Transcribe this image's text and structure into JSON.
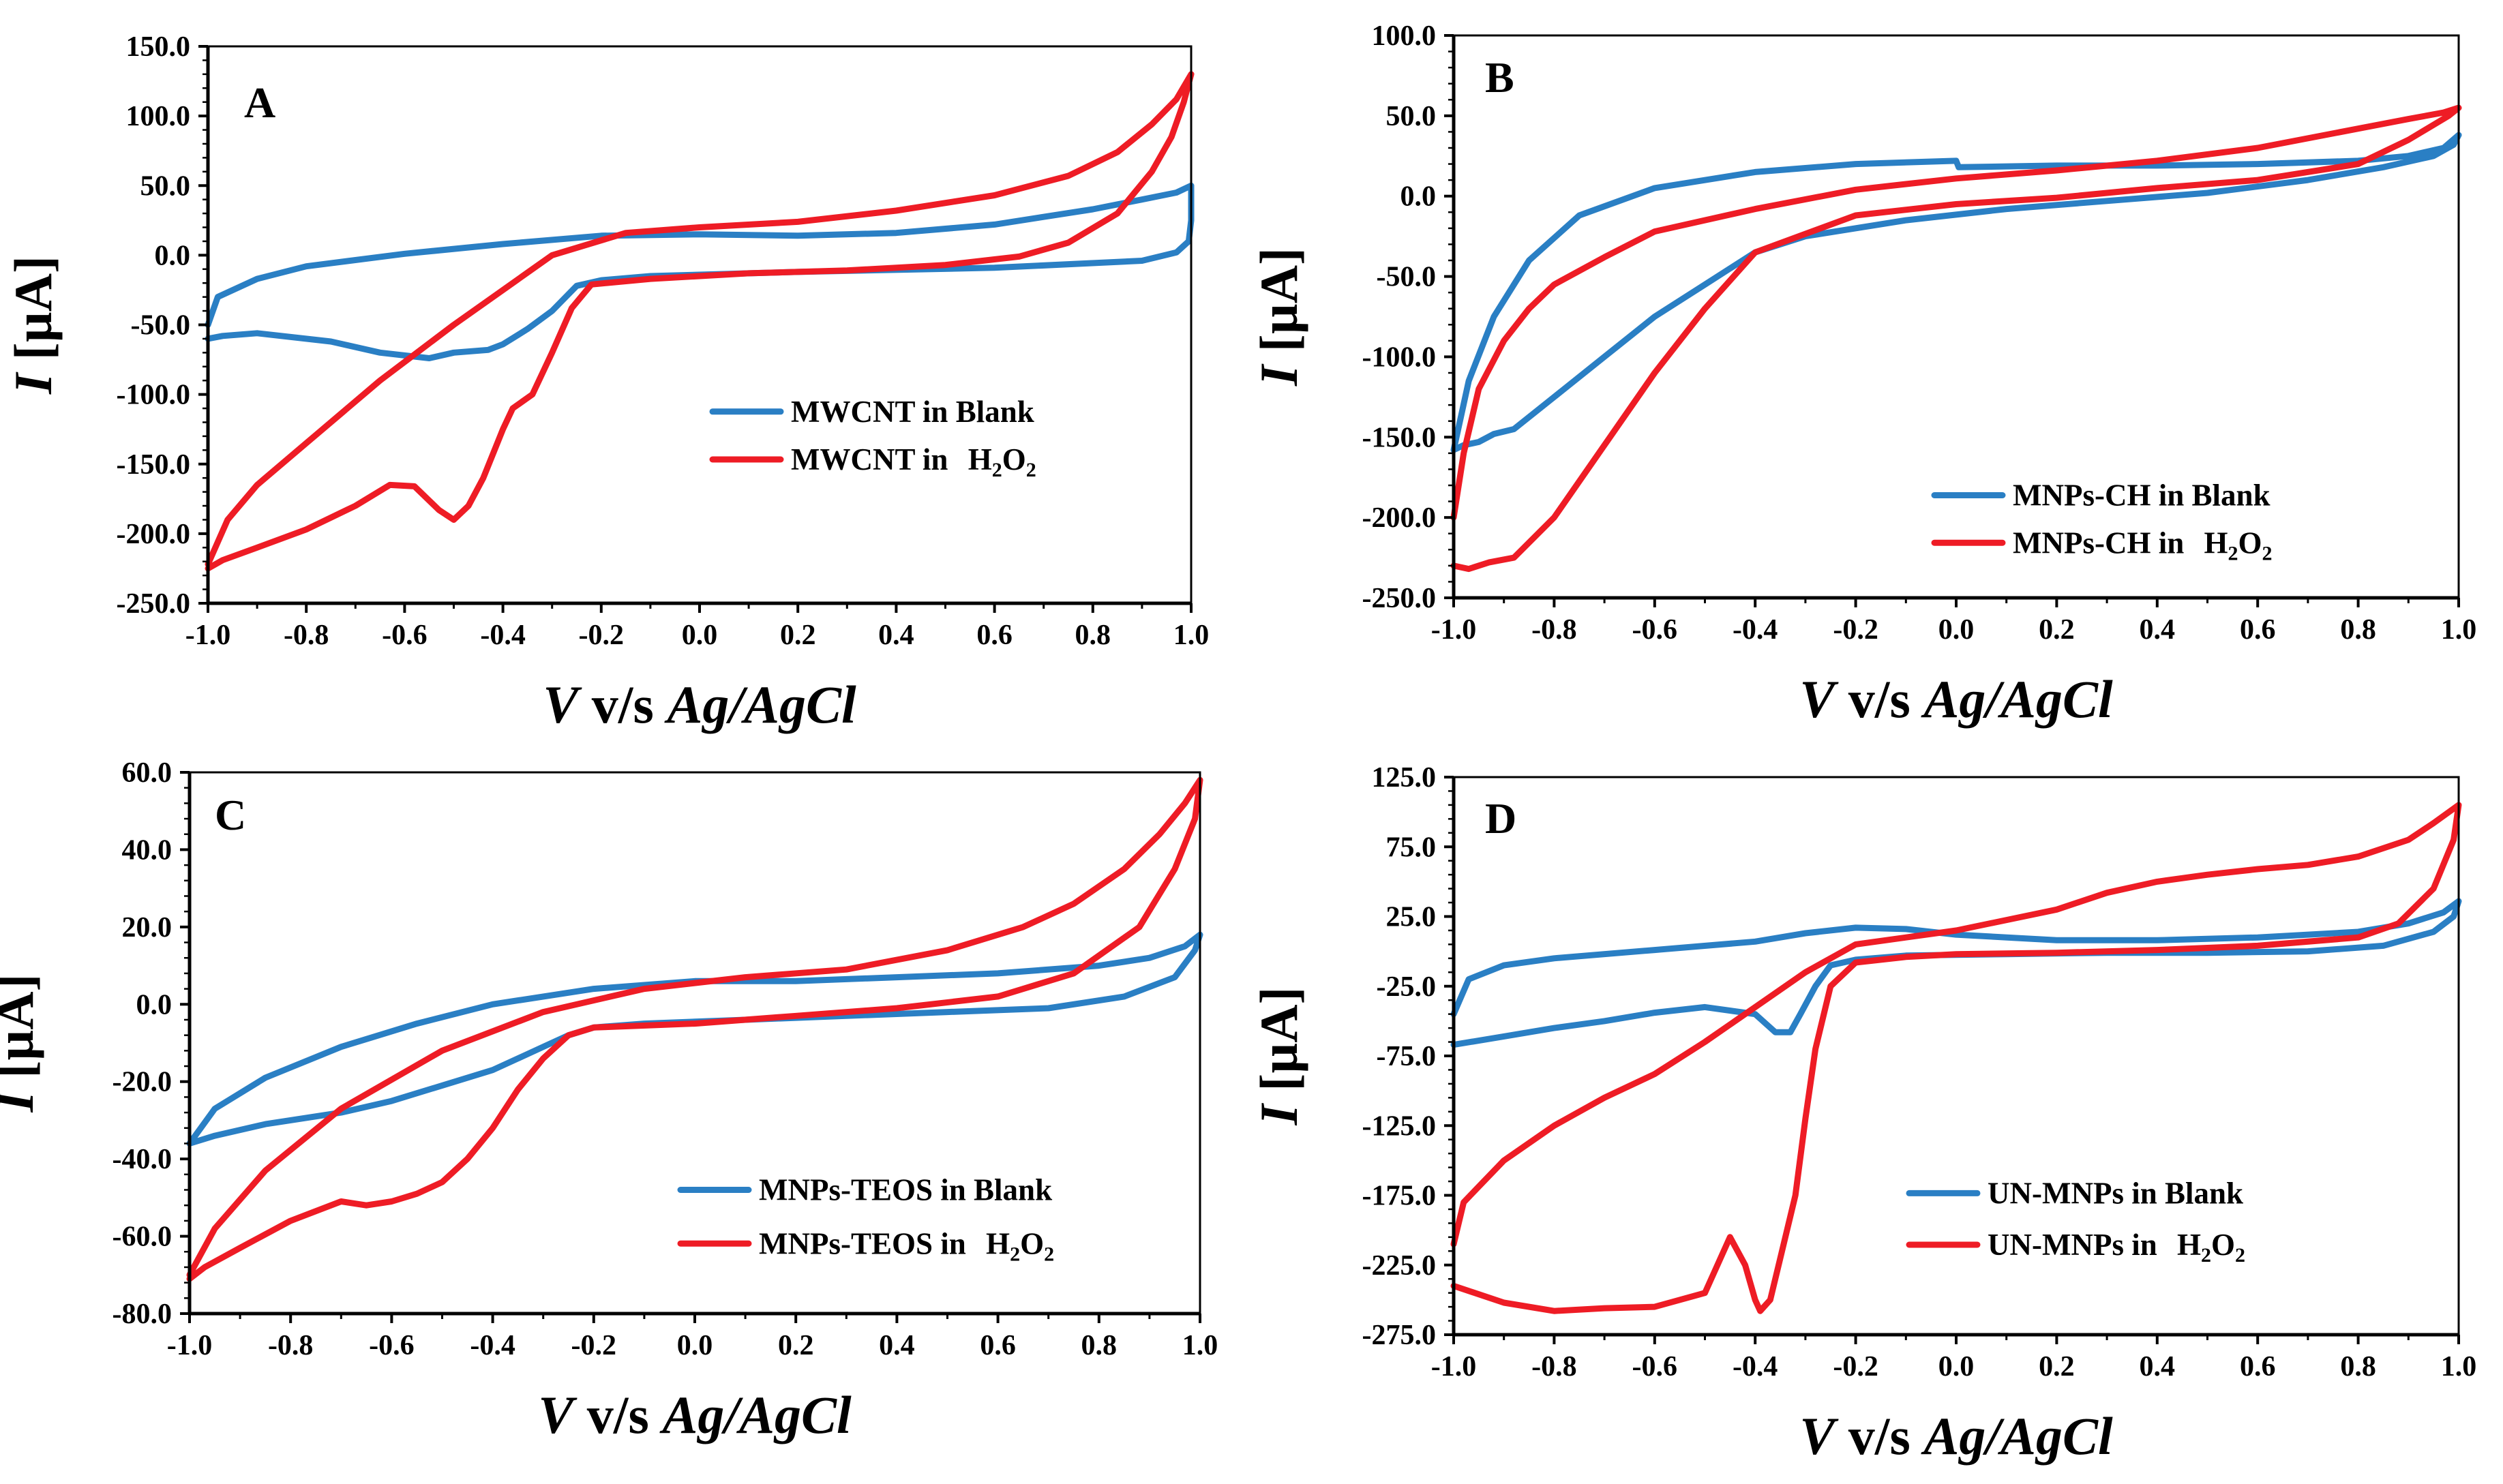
{
  "figure": {
    "colors": {
      "blank": "#2a7fc4",
      "h2o2": "#ee1c25",
      "axis": "#000000"
    }
  },
  "chart_data": [
    {
      "type": "line",
      "panel": "A",
      "xlabel": {
        "v": "V",
        "mid": " v/s ",
        "ref": "Ag/AgCl"
      },
      "ylabel": {
        "i": "I",
        "unit": " [µA]"
      },
      "xlim": [
        -1.0,
        1.0
      ],
      "ylim": [
        -250,
        150
      ],
      "xticks": [
        -1.0,
        -0.8,
        -0.6,
        -0.4,
        -0.2,
        0.0,
        0.2,
        0.4,
        0.6,
        0.8,
        1.0
      ],
      "xtick_labels": [
        "-1.0",
        "-0.8",
        "-0.6",
        "-0.4",
        "-0.2",
        "0.0",
        "0.2",
        "0.4",
        "0.6",
        "0.8",
        "1.0"
      ],
      "yticks": [
        -250,
        -200,
        -150,
        -100,
        -50,
        0,
        50,
        100,
        150
      ],
      "ytick_labels": [
        "-250.0",
        "-200.0",
        "-150.0",
        "-100.0",
        "-50.0",
        "0.0",
        "50.0",
        "100.0",
        "150.0"
      ],
      "legend_position": "center-right",
      "series": [
        {
          "name": "MWCNT in Blank",
          "legend_text": "MWCNT in Blank",
          "color": "blank",
          "x": [
            -1.0,
            -0.98,
            -0.9,
            -0.8,
            -0.6,
            -0.4,
            -0.2,
            0.0,
            0.2,
            0.4,
            0.6,
            0.8,
            0.9,
            0.97,
            1.0,
            1.0,
            0.995,
            0.97,
            0.9,
            0.6,
            0.2,
            -0.1,
            -0.2,
            -0.25,
            -0.3,
            -0.35,
            -0.4,
            -0.43,
            -0.5,
            -0.55,
            -0.65,
            -0.75,
            -0.9,
            -0.97,
            -1.0
          ],
          "y": [
            -50,
            -30,
            -17,
            -8,
            1,
            8,
            14,
            15,
            14,
            16,
            22,
            33,
            40,
            45,
            50,
            25,
            10,
            2,
            -4,
            -9,
            -12,
            -15,
            -18,
            -22,
            -40,
            -53,
            -64,
            -68,
            -70,
            -74,
            -70,
            -62,
            -56,
            -58,
            -60
          ]
        },
        {
          "name": "MWCNT in H2O2",
          "legend_text": "MWCNT in ",
          "legend_formula": [
            "H",
            "2",
            "O",
            "2"
          ],
          "color": "h2o2",
          "x": [
            -1.0,
            -0.96,
            -0.9,
            -0.8,
            -0.65,
            -0.5,
            -0.3,
            -0.15,
            0.0,
            0.2,
            0.4,
            0.6,
            0.75,
            0.85,
            0.92,
            0.97,
            1.0,
            0.985,
            0.96,
            0.92,
            0.85,
            0.75,
            0.65,
            0.5,
            0.3,
            0.1,
            -0.1,
            -0.22,
            -0.26,
            -0.3,
            -0.34,
            -0.38,
            -0.4,
            -0.44,
            -0.47,
            -0.5,
            -0.53,
            -0.58,
            -0.63,
            -0.7,
            -0.8,
            -0.9,
            -0.97,
            -1.0
          ],
          "y": [
            -222,
            -190,
            -165,
            -135,
            -90,
            -50,
            0,
            16,
            20,
            24,
            32,
            43,
            57,
            74,
            94,
            112,
            130,
            110,
            85,
            60,
            30,
            9,
            -1,
            -7,
            -11,
            -13,
            -17,
            -21,
            -38,
            -70,
            -100,
            -110,
            -125,
            -160,
            -180,
            -190,
            -183,
            -166,
            -165,
            -180,
            -197,
            -210,
            -219,
            -225
          ]
        }
      ]
    },
    {
      "type": "line",
      "panel": "B",
      "xlabel": {
        "v": "V",
        "mid": " v/s ",
        "ref": "Ag/AgCl"
      },
      "ylabel": {
        "i": "I",
        "unit": " [µA]"
      },
      "xlim": [
        -1.0,
        1.0
      ],
      "ylim": [
        -250,
        100
      ],
      "xticks": [
        -1.0,
        -0.8,
        -0.6,
        -0.4,
        -0.2,
        0.0,
        0.2,
        0.4,
        0.6,
        0.8,
        1.0
      ],
      "xtick_labels": [
        "-1.0",
        "-0.8",
        "-0.6",
        "-0.4",
        "-0.2",
        "0.0",
        "0.2",
        "0.4",
        "0.6",
        "0.8",
        "1.0"
      ],
      "yticks": [
        -250,
        -200,
        -150,
        -100,
        -50,
        0,
        50,
        100
      ],
      "ytick_labels": [
        "-250.0",
        "-200.0",
        "-150.0",
        "-100.0",
        "-50.0",
        "0.0",
        "50.0",
        "100.0"
      ],
      "legend_position": "bottom-right",
      "series": [
        {
          "name": "MNPs-CH in Blank",
          "legend_text": "MNPs-CH in Blank",
          "color": "blank",
          "x": [
            -1.0,
            -0.97,
            -0.92,
            -0.85,
            -0.75,
            -0.6,
            -0.4,
            -0.2,
            0.0,
            0.005,
            0.2,
            0.4,
            0.6,
            0.8,
            0.9,
            0.97,
            1.0,
            0.99,
            0.95,
            0.85,
            0.7,
            0.5,
            0.3,
            0.1,
            -0.1,
            -0.3,
            -0.4,
            -0.5,
            -0.6,
            -0.7,
            -0.8,
            -0.88,
            -0.92,
            -0.95,
            -0.98,
            -1.0
          ],
          "y": [
            -158,
            -115,
            -75,
            -40,
            -12,
            5,
            15,
            20,
            22,
            18,
            19,
            19,
            20,
            22,
            25,
            30,
            38,
            32,
            25,
            18,
            10,
            2,
            -3,
            -8,
            -15,
            -25,
            -35,
            -55,
            -75,
            -100,
            -125,
            -145,
            -148,
            -153,
            -155,
            -158
          ]
        },
        {
          "name": "MNPs-CH in H2O2",
          "legend_text": "MNPs-CH in ",
          "legend_formula": [
            "H",
            "2",
            "O",
            "2"
          ],
          "color": "h2o2",
          "x": [
            -1.0,
            -0.98,
            -0.95,
            -0.9,
            -0.85,
            -0.8,
            -0.7,
            -0.6,
            -0.4,
            -0.2,
            0.0,
            0.2,
            0.4,
            0.6,
            0.8,
            0.9,
            0.97,
            1.0,
            0.98,
            0.9,
            0.8,
            0.6,
            0.4,
            0.2,
            0.0,
            -0.2,
            -0.4,
            -0.5,
            -0.6,
            -0.7,
            -0.8,
            -0.88,
            -0.93,
            -0.97,
            -1.0
          ],
          "y": [
            -200,
            -160,
            -120,
            -90,
            -70,
            -55,
            -38,
            -22,
            -8,
            4,
            11,
            16,
            22,
            30,
            42,
            48,
            52,
            55,
            50,
            35,
            20,
            10,
            5,
            -1,
            -5,
            -12,
            -35,
            -70,
            -110,
            -155,
            -200,
            -225,
            -228,
            -232,
            -230
          ]
        }
      ]
    },
    {
      "type": "line",
      "panel": "C",
      "xlabel": {
        "v": "V",
        "mid": " v/s ",
        "ref": "Ag/AgCl"
      },
      "ylabel": {
        "i": "I",
        "unit": " [µA]"
      },
      "xlim": [
        -1.0,
        1.0
      ],
      "ylim": [
        -80,
        60
      ],
      "xticks": [
        -1.0,
        -0.8,
        -0.6,
        -0.4,
        -0.2,
        0.0,
        0.2,
        0.4,
        0.6,
        0.8,
        1.0
      ],
      "xtick_labels": [
        "-1.0",
        "-0.8",
        "-0.6",
        "-0.4",
        "-0.2",
        "0.0",
        "0.2",
        "0.4",
        "0.6",
        "0.8",
        "1.0"
      ],
      "yticks": [
        -80,
        -60,
        -40,
        -20,
        0,
        20,
        40,
        60
      ],
      "ytick_labels": [
        "-80.0",
        "-60.0",
        "-40.0",
        "-20.0",
        "0.0",
        "20.0",
        "40.0",
        "60.0"
      ],
      "legend_position": "bottom-right",
      "series": [
        {
          "name": "MNPs-TEOS in Blank",
          "legend_text": "MNPs-TEOS in Blank",
          "color": "blank",
          "x": [
            -1.0,
            -0.95,
            -0.85,
            -0.7,
            -0.55,
            -0.4,
            -0.2,
            0.0,
            0.2,
            0.4,
            0.6,
            0.8,
            0.9,
            0.97,
            1.0,
            0.99,
            0.95,
            0.85,
            0.7,
            0.5,
            0.3,
            0.1,
            -0.1,
            -0.2,
            -0.25,
            -0.3,
            -0.35,
            -0.4,
            -0.5,
            -0.6,
            -0.7,
            -0.85,
            -0.95,
            -1.0
          ],
          "y": [
            -36,
            -27,
            -19,
            -11,
            -5,
            0,
            4,
            6,
            6,
            7,
            8,
            10,
            12,
            15,
            18,
            14,
            7,
            2,
            -1,
            -2,
            -3,
            -4,
            -5,
            -6,
            -8,
            -11,
            -14,
            -17,
            -21,
            -25,
            -28,
            -31,
            -34,
            -36
          ]
        },
        {
          "name": "MNPs-TEOS in H2O2",
          "legend_text": "MNPs-TEOS in ",
          "legend_formula": [
            "H",
            "2",
            "O",
            "2"
          ],
          "color": "h2o2",
          "x": [
            -1.0,
            -0.95,
            -0.85,
            -0.7,
            -0.5,
            -0.3,
            -0.1,
            0.1,
            0.3,
            0.5,
            0.65,
            0.75,
            0.85,
            0.92,
            0.97,
            1.0,
            0.99,
            0.95,
            0.88,
            0.75,
            0.6,
            0.4,
            0.2,
            0.0,
            -0.2,
            -0.25,
            -0.3,
            -0.35,
            -0.4,
            -0.45,
            -0.5,
            -0.55,
            -0.6,
            -0.65,
            -0.7,
            -0.8,
            -0.9,
            -0.97,
            -1.0
          ],
          "y": [
            -70,
            -58,
            -43,
            -27,
            -12,
            -2,
            4,
            7,
            9,
            14,
            20,
            26,
            35,
            44,
            52,
            58,
            48,
            35,
            20,
            8,
            2,
            -1,
            -3,
            -5,
            -6,
            -8,
            -14,
            -22,
            -32,
            -40,
            -46,
            -49,
            -51,
            -52,
            -51,
            -56,
            -63,
            -68,
            -71
          ]
        }
      ]
    },
    {
      "type": "line",
      "panel": "D",
      "xlabel": {
        "v": "V",
        "mid": " v/s ",
        "ref": "Ag/AgCl"
      },
      "ylabel": {
        "i": "I",
        "unit": " [µA]"
      },
      "xlim": [
        -1.0,
        1.0
      ],
      "ylim": [
        -275,
        125
      ],
      "xticks": [
        -1.0,
        -0.8,
        -0.6,
        -0.4,
        -0.2,
        0.0,
        0.2,
        0.4,
        0.6,
        0.8,
        1.0
      ],
      "xtick_labels": [
        "-1.0",
        "-0.8",
        "-0.6",
        "-0.4",
        "-0.2",
        "0.0",
        "0.2",
        "0.4",
        "0.6",
        "0.8",
        "1.0"
      ],
      "yticks": [
        -275,
        -225,
        -175,
        -125,
        -75,
        -25,
        25,
        75,
        125
      ],
      "ytick_labels": [
        "-275.0",
        "-225.0",
        "-175.0",
        "-125.0",
        "-75.0",
        "-25.0",
        "25.0",
        "75.0",
        "125.0"
      ],
      "legend_position": "bottom-right",
      "series": [
        {
          "name": "UN-MNPs in Blank",
          "legend_text": "UN-MNPs in Blank",
          "color": "blank",
          "x": [
            -1.0,
            -0.97,
            -0.9,
            -0.8,
            -0.6,
            -0.4,
            -0.3,
            -0.2,
            -0.1,
            0.0,
            0.2,
            0.4,
            0.6,
            0.8,
            0.9,
            0.97,
            1.0,
            0.99,
            0.95,
            0.85,
            0.7,
            0.5,
            0.3,
            0.1,
            -0.1,
            -0.2,
            -0.25,
            -0.28,
            -0.31,
            -0.33,
            -0.36,
            -0.4,
            -0.5,
            -0.6,
            -0.7,
            -0.8,
            -0.9,
            -1.0
          ],
          "y": [
            -45,
            -20,
            -10,
            -5,
            1,
            7,
            13,
            17,
            16,
            12,
            8,
            8,
            10,
            14,
            20,
            28,
            36,
            25,
            14,
            4,
            0,
            -1,
            -1,
            -2,
            -3,
            -6,
            -10,
            -25,
            -45,
            -58,
            -58,
            -45,
            -40,
            -44,
            -50,
            -55,
            -61,
            -67
          ]
        },
        {
          "name": "UN-MNPs in H2O2",
          "legend_text": "UN-MNPs in ",
          "legend_formula": [
            "H",
            "2",
            "O",
            "2"
          ],
          "color": "h2o2",
          "x": [
            -1.0,
            -0.98,
            -0.9,
            -0.8,
            -0.7,
            -0.6,
            -0.5,
            -0.4,
            -0.3,
            -0.2,
            0.0,
            0.2,
            0.3,
            0.4,
            0.5,
            0.6,
            0.7,
            0.8,
            0.9,
            0.95,
            1.0,
            0.99,
            0.95,
            0.88,
            0.8,
            0.6,
            0.4,
            0.2,
            0.0,
            -0.1,
            -0.2,
            -0.25,
            -0.28,
            -0.3,
            -0.32,
            -0.35,
            -0.37,
            -0.39,
            -0.4,
            -0.42,
            -0.45,
            -0.5,
            -0.6,
            -0.7,
            -0.8,
            -0.9,
            -1.0
          ],
          "y": [
            -210,
            -180,
            -150,
            -125,
            -105,
            -88,
            -65,
            -40,
            -15,
            5,
            15,
            30,
            42,
            50,
            55,
            59,
            62,
            68,
            80,
            92,
            105,
            80,
            45,
            20,
            10,
            4,
            1,
            -1,
            -2,
            -4,
            -8,
            -25,
            -70,
            -120,
            -175,
            -220,
            -250,
            -258,
            -250,
            -225,
            -205,
            -245,
            -255,
            -256,
            -258,
            -252,
            -240
          ]
        }
      ]
    }
  ]
}
